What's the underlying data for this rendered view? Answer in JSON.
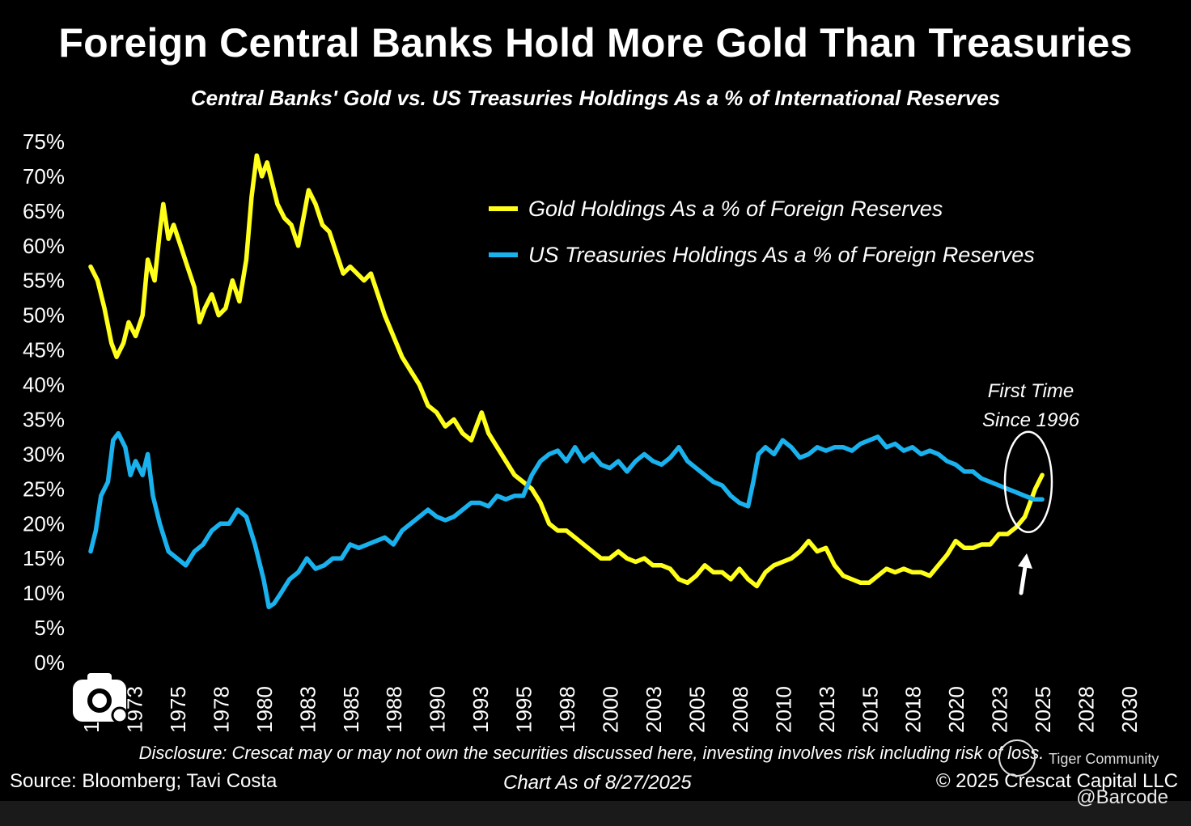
{
  "title": "Foreign Central Banks Hold More Gold Than Treasuries",
  "subtitle": "Central Banks' Gold vs. US Treasuries Holdings As a % of International Reserves",
  "disclosure": "Disclosure: Crescat may or may not own the securities discussed here, investing involves risk including risk of loss.",
  "source": "Source: Bloomberg; Tavi Costa",
  "chart_as_of": "Chart As of 8/27/2025",
  "copyright": "© 2025 Crescat Capital LLC",
  "watermark": {
    "community": "Tiger Community",
    "handle": "@Barcode"
  },
  "icons": {
    "camera": "camera-icon",
    "tiger": "tiger-logo-icon",
    "arrow": "arrow-up-icon"
  },
  "colors": {
    "gold": "#FFFF1A",
    "treasuries": "#1AB2EE",
    "background": "#000000",
    "text": "#FFFFFF"
  },
  "chart_data": {
    "type": "line",
    "title": "Foreign Central Banks Hold More Gold Than Treasuries",
    "subtitle": "Central Banks' Gold vs. US Treasuries Holdings As a % of International Reserves",
    "xlabel": "",
    "ylabel": "",
    "xlim": [
      1970,
      2030
    ],
    "ylim": [
      0,
      75
    ],
    "y_ticks": [
      "0%",
      "5%",
      "10%",
      "15%",
      "20%",
      "25%",
      "30%",
      "35%",
      "40%",
      "45%",
      "50%",
      "55%",
      "60%",
      "65%",
      "70%",
      "75%"
    ],
    "x_ticks": [
      "1970",
      "1973",
      "1975",
      "1978",
      "1980",
      "1983",
      "1985",
      "1988",
      "1990",
      "1993",
      "1995",
      "1998",
      "2000",
      "2003",
      "2005",
      "2008",
      "2010",
      "2013",
      "2015",
      "2018",
      "2020",
      "2023",
      "2025",
      "2028",
      "2030"
    ],
    "x_tick_values": [
      1970,
      1972.5,
      1975,
      1977.5,
      1980,
      1982.5,
      1985,
      1987.5,
      1990,
      1992.5,
      1995,
      1997.5,
      2000,
      2002.5,
      2005,
      2007.5,
      2010,
      2012.5,
      2015,
      2017.5,
      2020,
      2022.5,
      2025,
      2027.5,
      2030
    ],
    "grid": false,
    "legend_position": "top-right",
    "annotation": {
      "line1": "First Time",
      "line2": "Since 1996",
      "x": 2024.2,
      "y": 26
    },
    "series": [
      {
        "name": "Gold Holdings As a % of Foreign Reserves",
        "color": "#FFFF1A",
        "points": [
          [
            1970.0,
            57
          ],
          [
            1970.4,
            55
          ],
          [
            1970.8,
            51
          ],
          [
            1971.2,
            46
          ],
          [
            1971.5,
            44
          ],
          [
            1971.9,
            46
          ],
          [
            1972.2,
            49
          ],
          [
            1972.6,
            47
          ],
          [
            1973.0,
            50
          ],
          [
            1973.3,
            58
          ],
          [
            1973.7,
            55
          ],
          [
            1974.0,
            62
          ],
          [
            1974.2,
            66
          ],
          [
            1974.5,
            61
          ],
          [
            1974.8,
            63
          ],
          [
            1975.2,
            60
          ],
          [
            1975.6,
            57
          ],
          [
            1976.0,
            54
          ],
          [
            1976.3,
            49
          ],
          [
            1976.6,
            51
          ],
          [
            1977.0,
            53
          ],
          [
            1977.4,
            50
          ],
          [
            1977.8,
            51
          ],
          [
            1978.2,
            55
          ],
          [
            1978.6,
            52
          ],
          [
            1979.0,
            58
          ],
          [
            1979.3,
            67
          ],
          [
            1979.6,
            73
          ],
          [
            1979.9,
            70
          ],
          [
            1980.2,
            72
          ],
          [
            1980.5,
            69
          ],
          [
            1980.8,
            66
          ],
          [
            1981.2,
            64
          ],
          [
            1981.6,
            63
          ],
          [
            1982.0,
            60
          ],
          [
            1982.3,
            64
          ],
          [
            1982.6,
            68
          ],
          [
            1983.0,
            66
          ],
          [
            1983.4,
            63
          ],
          [
            1983.8,
            62
          ],
          [
            1984.2,
            59
          ],
          [
            1984.6,
            56
          ],
          [
            1985.0,
            57
          ],
          [
            1985.4,
            56
          ],
          [
            1985.8,
            55
          ],
          [
            1986.2,
            56
          ],
          [
            1986.6,
            53
          ],
          [
            1987.0,
            50
          ],
          [
            1987.5,
            47
          ],
          [
            1988.0,
            44
          ],
          [
            1988.5,
            42
          ],
          [
            1989.0,
            40
          ],
          [
            1989.5,
            37
          ],
          [
            1990.0,
            36
          ],
          [
            1990.5,
            34
          ],
          [
            1991.0,
            35
          ],
          [
            1991.5,
            33
          ],
          [
            1992.0,
            32
          ],
          [
            1992.3,
            34
          ],
          [
            1992.6,
            36
          ],
          [
            1993.0,
            33
          ],
          [
            1993.5,
            31
          ],
          [
            1994.0,
            29
          ],
          [
            1994.5,
            27
          ],
          [
            1995.0,
            26
          ],
          [
            1995.5,
            25
          ],
          [
            1996.0,
            23
          ],
          [
            1996.5,
            20
          ],
          [
            1997.0,
            19
          ],
          [
            1997.5,
            19
          ],
          [
            1998.0,
            18
          ],
          [
            1998.5,
            17
          ],
          [
            1999.0,
            16
          ],
          [
            1999.5,
            15
          ],
          [
            2000.0,
            15
          ],
          [
            2000.5,
            16
          ],
          [
            2001.0,
            15
          ],
          [
            2001.5,
            14.5
          ],
          [
            2002.0,
            15
          ],
          [
            2002.5,
            14
          ],
          [
            2003.0,
            14
          ],
          [
            2003.5,
            13.5
          ],
          [
            2004.0,
            12
          ],
          [
            2004.5,
            11.5
          ],
          [
            2005.0,
            12.5
          ],
          [
            2005.5,
            14
          ],
          [
            2006.0,
            13
          ],
          [
            2006.5,
            13
          ],
          [
            2007.0,
            12
          ],
          [
            2007.5,
            13.5
          ],
          [
            2008.0,
            12
          ],
          [
            2008.5,
            11
          ],
          [
            2009.0,
            13
          ],
          [
            2009.5,
            14
          ],
          [
            2010.0,
            14.5
          ],
          [
            2010.5,
            15
          ],
          [
            2011.0,
            16
          ],
          [
            2011.5,
            17.5
          ],
          [
            2012.0,
            16
          ],
          [
            2012.5,
            16.5
          ],
          [
            2013.0,
            14
          ],
          [
            2013.5,
            12.5
          ],
          [
            2014.0,
            12
          ],
          [
            2014.5,
            11.5
          ],
          [
            2015.0,
            11.5
          ],
          [
            2015.5,
            12.5
          ],
          [
            2016.0,
            13.5
          ],
          [
            2016.5,
            13
          ],
          [
            2017.0,
            13.5
          ],
          [
            2017.5,
            13
          ],
          [
            2018.0,
            13
          ],
          [
            2018.5,
            12.5
          ],
          [
            2019.0,
            14
          ],
          [
            2019.5,
            15.5
          ],
          [
            2020.0,
            17.5
          ],
          [
            2020.5,
            16.5
          ],
          [
            2021.0,
            16.5
          ],
          [
            2021.5,
            17
          ],
          [
            2022.0,
            17
          ],
          [
            2022.5,
            18.5
          ],
          [
            2023.0,
            18.5
          ],
          [
            2023.5,
            19.5
          ],
          [
            2024.0,
            21
          ],
          [
            2024.3,
            23
          ],
          [
            2024.6,
            25
          ],
          [
            2025.0,
            27
          ]
        ]
      },
      {
        "name": "US Treasuries Holdings As a % of Foreign Reserves",
        "color": "#1AB2EE",
        "points": [
          [
            1970.0,
            16
          ],
          [
            1970.3,
            19
          ],
          [
            1970.6,
            24
          ],
          [
            1971.0,
            26
          ],
          [
            1971.3,
            32
          ],
          [
            1971.6,
            33
          ],
          [
            1972.0,
            31
          ],
          [
            1972.3,
            27
          ],
          [
            1972.6,
            29
          ],
          [
            1973.0,
            27
          ],
          [
            1973.3,
            30
          ],
          [
            1973.6,
            24
          ],
          [
            1974.0,
            20
          ],
          [
            1974.5,
            16
          ],
          [
            1975.0,
            15
          ],
          [
            1975.5,
            14
          ],
          [
            1976.0,
            16
          ],
          [
            1976.5,
            17
          ],
          [
            1977.0,
            19
          ],
          [
            1977.5,
            20
          ],
          [
            1978.0,
            20
          ],
          [
            1978.5,
            22
          ],
          [
            1979.0,
            21
          ],
          [
            1979.5,
            17
          ],
          [
            1980.0,
            12
          ],
          [
            1980.3,
            8
          ],
          [
            1980.6,
            8.5
          ],
          [
            1981.0,
            10
          ],
          [
            1981.5,
            12
          ],
          [
            1982.0,
            13
          ],
          [
            1982.5,
            15
          ],
          [
            1983.0,
            13.5
          ],
          [
            1983.5,
            14
          ],
          [
            1984.0,
            15
          ],
          [
            1984.5,
            15
          ],
          [
            1985.0,
            17
          ],
          [
            1985.5,
            16.5
          ],
          [
            1986.0,
            17
          ],
          [
            1986.5,
            17.5
          ],
          [
            1987.0,
            18
          ],
          [
            1987.5,
            17
          ],
          [
            1988.0,
            19
          ],
          [
            1988.5,
            20
          ],
          [
            1989.0,
            21
          ],
          [
            1989.5,
            22
          ],
          [
            1990.0,
            21
          ],
          [
            1990.5,
            20.5
          ],
          [
            1991.0,
            21
          ],
          [
            1991.5,
            22
          ],
          [
            1992.0,
            23
          ],
          [
            1992.5,
            23
          ],
          [
            1993.0,
            22.5
          ],
          [
            1993.5,
            24
          ],
          [
            1994.0,
            23.5
          ],
          [
            1994.5,
            24
          ],
          [
            1995.0,
            24
          ],
          [
            1995.5,
            27
          ],
          [
            1996.0,
            29
          ],
          [
            1996.5,
            30
          ],
          [
            1997.0,
            30.5
          ],
          [
            1997.5,
            29
          ],
          [
            1998.0,
            31
          ],
          [
            1998.5,
            29
          ],
          [
            1999.0,
            30
          ],
          [
            1999.5,
            28.5
          ],
          [
            2000.0,
            28
          ],
          [
            2000.5,
            29
          ],
          [
            2001.0,
            27.5
          ],
          [
            2001.5,
            29
          ],
          [
            2002.0,
            30
          ],
          [
            2002.5,
            29
          ],
          [
            2003.0,
            28.5
          ],
          [
            2003.5,
            29.5
          ],
          [
            2004.0,
            31
          ],
          [
            2004.5,
            29
          ],
          [
            2005.0,
            28
          ],
          [
            2005.5,
            27
          ],
          [
            2006.0,
            26
          ],
          [
            2006.5,
            25.5
          ],
          [
            2007.0,
            24
          ],
          [
            2007.5,
            23
          ],
          [
            2008.0,
            22.5
          ],
          [
            2008.3,
            26
          ],
          [
            2008.6,
            30
          ],
          [
            2009.0,
            31
          ],
          [
            2009.5,
            30
          ],
          [
            2010.0,
            32
          ],
          [
            2010.5,
            31
          ],
          [
            2011.0,
            29.5
          ],
          [
            2011.5,
            30
          ],
          [
            2012.0,
            31
          ],
          [
            2012.5,
            30.5
          ],
          [
            2013.0,
            31
          ],
          [
            2013.5,
            31
          ],
          [
            2014.0,
            30.5
          ],
          [
            2014.5,
            31.5
          ],
          [
            2015.0,
            32
          ],
          [
            2015.5,
            32.5
          ],
          [
            2016.0,
            31
          ],
          [
            2016.5,
            31.5
          ],
          [
            2017.0,
            30.5
          ],
          [
            2017.5,
            31
          ],
          [
            2018.0,
            30
          ],
          [
            2018.5,
            30.5
          ],
          [
            2019.0,
            30
          ],
          [
            2019.5,
            29
          ],
          [
            2020.0,
            28.5
          ],
          [
            2020.5,
            27.5
          ],
          [
            2021.0,
            27.5
          ],
          [
            2021.5,
            26.5
          ],
          [
            2022.0,
            26
          ],
          [
            2022.5,
            25.5
          ],
          [
            2023.0,
            25
          ],
          [
            2023.5,
            24.5
          ],
          [
            2024.0,
            24
          ],
          [
            2024.5,
            23.5
          ],
          [
            2025.0,
            23.5
          ]
        ]
      }
    ]
  }
}
